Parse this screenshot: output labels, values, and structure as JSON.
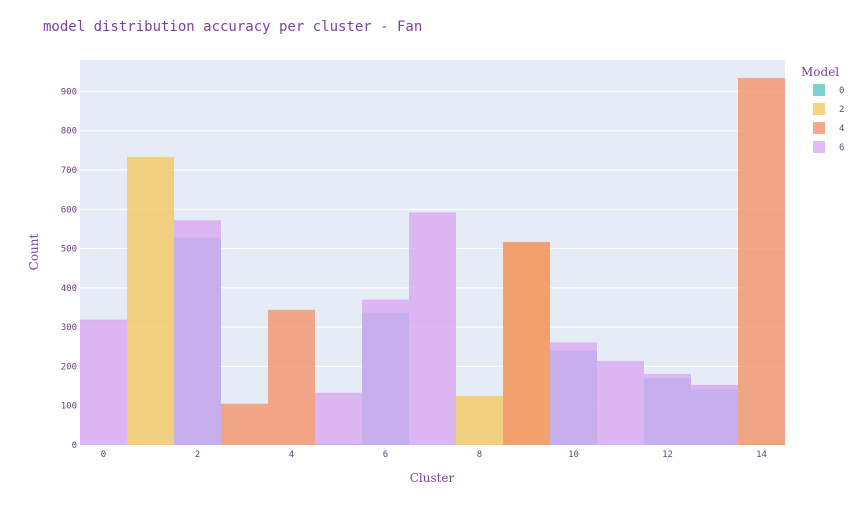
{
  "chart_data": {
    "type": "bar",
    "title": "model distribution accuracy per cluster - Fan",
    "xlabel": "Cluster",
    "ylabel": "Count",
    "ylim": [
      0,
      980
    ],
    "xlim": [
      -0.5,
      14.5
    ],
    "x_ticks": [
      0,
      2,
      4,
      6,
      8,
      10,
      12,
      14
    ],
    "y_ticks": [
      0,
      100,
      200,
      300,
      400,
      500,
      600,
      700,
      800,
      900
    ],
    "barmode": "overlay",
    "legend_title": "Model",
    "legend_placement": "top-right",
    "grid": true,
    "series": [
      {
        "name": "0",
        "color": "#5dc5c8",
        "points": [
          {
            "x": 2,
            "y": 528
          },
          {
            "x": 5,
            "y": 3
          },
          {
            "x": 6,
            "y": 337
          },
          {
            "x": 10,
            "y": 240
          },
          {
            "x": 12,
            "y": 170
          },
          {
            "x": 13,
            "y": 141
          }
        ]
      },
      {
        "name": "2",
        "color": "#f2c862",
        "points": [
          {
            "x": 1,
            "y": 733
          },
          {
            "x": 8,
            "y": 125
          },
          {
            "x": 9,
            "y": 515
          },
          {
            "x": 14,
            "y": 5
          }
        ]
      },
      {
        "name": "4",
        "color": "#f4946c",
        "points": [
          {
            "x": 3,
            "y": 105
          },
          {
            "x": 4,
            "y": 344
          },
          {
            "x": 9,
            "y": 517
          },
          {
            "x": 14,
            "y": 934
          }
        ]
      },
      {
        "name": "6",
        "color": "#d9a8f2",
        "points": [
          {
            "x": 0,
            "y": 319
          },
          {
            "x": 2,
            "y": 572
          },
          {
            "x": 5,
            "y": 133
          },
          {
            "x": 6,
            "y": 370
          },
          {
            "x": 7,
            "y": 592
          },
          {
            "x": 10,
            "y": 261
          },
          {
            "x": 11,
            "y": 214
          },
          {
            "x": 12,
            "y": 181
          },
          {
            "x": 13,
            "y": 153
          }
        ]
      }
    ]
  }
}
